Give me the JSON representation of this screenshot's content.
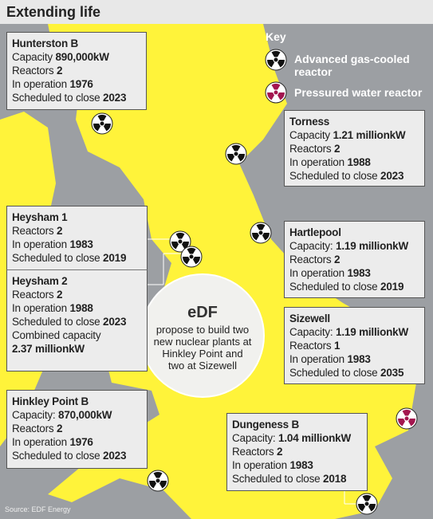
{
  "title": "Extending life",
  "source": "Source: EDF Energy",
  "key": {
    "title": "Key",
    "items": [
      "Advanced gas-cooled reactor",
      "Pressured water reactor"
    ]
  },
  "stations": [
    {
      "name": "Hunterston B",
      "facts": [
        {
          "label": "Capacity",
          "value": "890,000kW"
        },
        {
          "label": "Reactors",
          "value": "2"
        },
        {
          "label": "In operation",
          "value": "1976"
        },
        {
          "label": "Scheduled to close",
          "value": "2023"
        }
      ]
    },
    {
      "name": "Torness",
      "facts": [
        {
          "label": "Capacity",
          "value": "1.21 millionkW"
        },
        {
          "label": "Reactors",
          "value": "2"
        },
        {
          "label": "In operation",
          "value": "1988"
        },
        {
          "label": "Scheduled to close",
          "value": "2023"
        }
      ]
    },
    {
      "name": "Heysham 1",
      "facts": [
        {
          "label": "Reactors",
          "value": "2"
        },
        {
          "label": "In operation",
          "value": "1983"
        },
        {
          "label": "Scheduled to close",
          "value": "2019"
        }
      ]
    },
    {
      "name": "Heysham 2",
      "facts": [
        {
          "label": "Reactors",
          "value": "2"
        },
        {
          "label": "In operation",
          "value": "1988"
        },
        {
          "label": "Scheduled to close",
          "value": "2023"
        },
        {
          "label": "Combined capacity",
          "value": "2.37 millionkW"
        }
      ]
    },
    {
      "name": "Hartlepool",
      "facts": [
        {
          "label": "Capacity:",
          "value": "1.19 millionkW"
        },
        {
          "label": "Reactors",
          "value": "2"
        },
        {
          "label": "In operation",
          "value": "1983"
        },
        {
          "label": "Scheduled to close",
          "value": "2019"
        }
      ]
    },
    {
      "name": "Sizewell",
      "facts": [
        {
          "label": "Capacity:",
          "value": "1.19 millionkW"
        },
        {
          "label": "Reactors",
          "value": "1"
        },
        {
          "label": "In operation",
          "value": "1983"
        },
        {
          "label": "Scheduled to close",
          "value": "2035"
        }
      ]
    },
    {
      "name": "Hinkley Point B",
      "facts": [
        {
          "label": "Capacity:",
          "value": "870,000kW"
        },
        {
          "label": "Reactors",
          "value": "2"
        },
        {
          "label": "In operation",
          "value": "1976"
        },
        {
          "label": "Scheduled to close",
          "value": "2023"
        }
      ]
    },
    {
      "name": "Dungeness B",
      "facts": [
        {
          "label": "Capacity:",
          "value": "1.04 millionkW"
        },
        {
          "label": "Reactors",
          "value": "2"
        },
        {
          "label": "In operation",
          "value": "1983"
        },
        {
          "label": "Scheduled to close",
          "value": "2018"
        }
      ]
    }
  ],
  "edf": {
    "logo": "eDF",
    "text": "propose to build two new nuclear plants at Hinkley Point and two at Sizewell"
  }
}
